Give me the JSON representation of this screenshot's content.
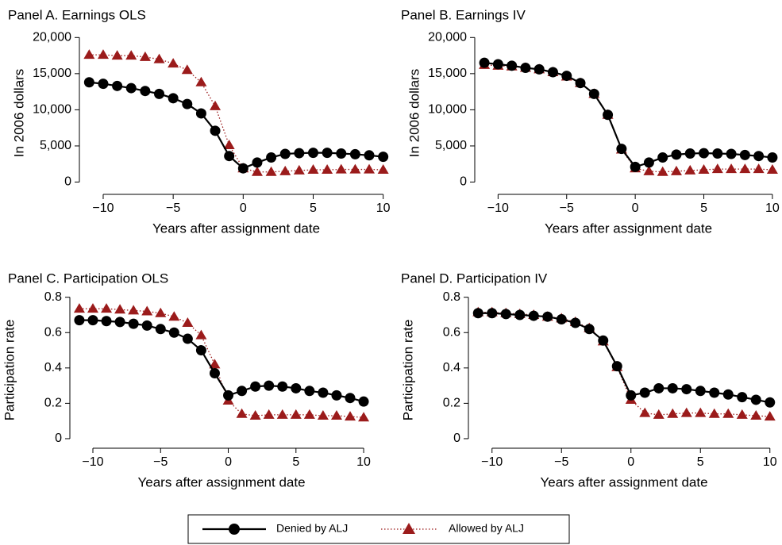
{
  "chart_data": [
    {
      "type": "line",
      "title": "Panel A. Earnings OLS",
      "xlabel": "Years after assignment date",
      "ylabel": "In 2006 dollars",
      "x": [
        -11,
        -10,
        -9,
        -8,
        -7,
        -6,
        -5,
        -4,
        -3,
        -2,
        -1,
        0,
        1,
        2,
        3,
        4,
        5,
        6,
        7,
        8,
        9,
        10
      ],
      "series": [
        {
          "name": "Denied by ALJ",
          "color": "#000000",
          "line": "solid",
          "marker": "circle",
          "values": [
            13800,
            13600,
            13300,
            13000,
            12600,
            12200,
            11600,
            10800,
            9500,
            7100,
            3600,
            1900,
            2700,
            3400,
            3900,
            4000,
            4050,
            4050,
            3950,
            3850,
            3700,
            3500
          ]
        },
        {
          "name": "Allowed by ALJ",
          "color": "#9b1b1b",
          "line": "dotted",
          "marker": "triangle",
          "values": [
            17600,
            17600,
            17500,
            17500,
            17300,
            17000,
            16400,
            15500,
            13800,
            10500,
            5100,
            1900,
            1400,
            1400,
            1500,
            1600,
            1700,
            1700,
            1750,
            1750,
            1750,
            1700
          ]
        }
      ],
      "xlim": [
        -11.7,
        10.7
      ],
      "ylim": [
        -1700,
        20800
      ],
      "xticks": [
        {
          "value": -10,
          "label": "−10"
        },
        {
          "value": -5,
          "label": "−5"
        },
        0,
        5,
        10
      ],
      "yticks": [
        0,
        {
          "value": 5000,
          "label": "5,000"
        },
        {
          "value": 10000,
          "label": "10,000"
        },
        {
          "value": 15000,
          "label": "15,000"
        },
        {
          "value": 20000,
          "label": "20,000"
        }
      ]
    },
    {
      "type": "line",
      "title": "Panel B. Earnings IV",
      "xlabel": "Years after assignment date",
      "ylabel": "In 2006 dollars",
      "x": [
        -11,
        -10,
        -9,
        -8,
        -7,
        -6,
        -5,
        -4,
        -3,
        -2,
        -1,
        0,
        1,
        2,
        3,
        4,
        5,
        6,
        7,
        8,
        9,
        10
      ],
      "series": [
        {
          "color": "#000000",
          "line": "solid",
          "marker": "circle",
          "values": [
            16500,
            16300,
            16100,
            15800,
            15600,
            15200,
            14700,
            13700,
            12200,
            9300,
            4600,
            2100,
            2700,
            3400,
            3800,
            3950,
            4000,
            3950,
            3900,
            3750,
            3600,
            3400
          ]
        },
        {
          "color": "#9b1b1b",
          "line": "dotted",
          "marker": "triangle",
          "values": [
            16200,
            16100,
            16000,
            15800,
            15600,
            15200,
            14600,
            13700,
            12200,
            9300,
            4500,
            1900,
            1500,
            1400,
            1500,
            1600,
            1700,
            1800,
            1800,
            1800,
            1800,
            1700
          ]
        }
      ],
      "xlim": [
        -11.7,
        10.7
      ],
      "ylim": [
        -1700,
        20800
      ],
      "xticks": [
        {
          "value": -10,
          "label": "−10"
        },
        {
          "value": -5,
          "label": "−5"
        },
        0,
        5,
        10
      ],
      "yticks": [
        0,
        {
          "value": 5000,
          "label": "5,000"
        },
        {
          "value": 10000,
          "label": "10,000"
        },
        {
          "value": 15000,
          "label": "15,000"
        },
        {
          "value": 20000,
          "label": "20,000"
        }
      ]
    },
    {
      "type": "line",
      "title": "Panel C. Participation OLS",
      "xlabel": "Years after assignment date",
      "ylabel": "Participation rate",
      "x": [
        -11,
        -10,
        -9,
        -8,
        -7,
        -6,
        -5,
        -4,
        -3,
        -2,
        -1,
        0,
        1,
        2,
        3,
        4,
        5,
        6,
        7,
        8,
        9,
        10
      ],
      "series": [
        {
          "color": "#000000",
          "line": "solid",
          "marker": "circle",
          "values": [
            0.67,
            0.67,
            0.665,
            0.66,
            0.65,
            0.64,
            0.62,
            0.6,
            0.565,
            0.5,
            0.37,
            0.245,
            0.27,
            0.295,
            0.3,
            0.295,
            0.285,
            0.27,
            0.26,
            0.245,
            0.23,
            0.21
          ]
        },
        {
          "color": "#9b1b1b",
          "line": "dotted",
          "marker": "triangle",
          "values": [
            0.735,
            0.735,
            0.735,
            0.73,
            0.725,
            0.72,
            0.71,
            0.69,
            0.655,
            0.585,
            0.42,
            0.215,
            0.14,
            0.13,
            0.135,
            0.135,
            0.135,
            0.135,
            0.13,
            0.13,
            0.125,
            0.12
          ]
        }
      ],
      "xlim": [
        -11.7,
        10.7
      ],
      "ylim": [
        -0.054,
        0.83
      ],
      "xticks": [
        {
          "value": -10,
          "label": "−10"
        },
        {
          "value": -5,
          "label": "−5"
        },
        0,
        5,
        10
      ],
      "yticks": [
        0,
        0.2,
        0.4,
        0.6,
        0.8
      ]
    },
    {
      "type": "line",
      "title": "Panel D. Participation IV",
      "xlabel": "Years after assignment date",
      "ylabel": "Participation rate",
      "x": [
        -11,
        -10,
        -9,
        -8,
        -7,
        -6,
        -5,
        -4,
        -3,
        -2,
        -1,
        0,
        1,
        2,
        3,
        4,
        5,
        6,
        7,
        8,
        9,
        10
      ],
      "series": [
        {
          "color": "#000000",
          "line": "solid",
          "marker": "circle",
          "values": [
            0.71,
            0.71,
            0.705,
            0.7,
            0.695,
            0.69,
            0.675,
            0.655,
            0.62,
            0.555,
            0.41,
            0.245,
            0.26,
            0.285,
            0.285,
            0.28,
            0.27,
            0.26,
            0.25,
            0.235,
            0.22,
            0.205
          ]
        },
        {
          "color": "#9b1b1b",
          "line": "dotted",
          "marker": "triangle",
          "values": [
            0.715,
            0.715,
            0.71,
            0.705,
            0.7,
            0.69,
            0.68,
            0.66,
            0.625,
            0.55,
            0.405,
            0.22,
            0.145,
            0.135,
            0.14,
            0.145,
            0.145,
            0.14,
            0.14,
            0.135,
            0.13,
            0.125
          ]
        }
      ],
      "xlim": [
        -11.7,
        10.7
      ],
      "ylim": [
        -0.054,
        0.83
      ],
      "xticks": [
        {
          "value": -10,
          "label": "−10"
        },
        {
          "value": -5,
          "label": "−5"
        },
        0,
        5,
        10
      ],
      "yticks": [
        0,
        0.2,
        0.4,
        0.6,
        0.8
      ]
    }
  ]
}
